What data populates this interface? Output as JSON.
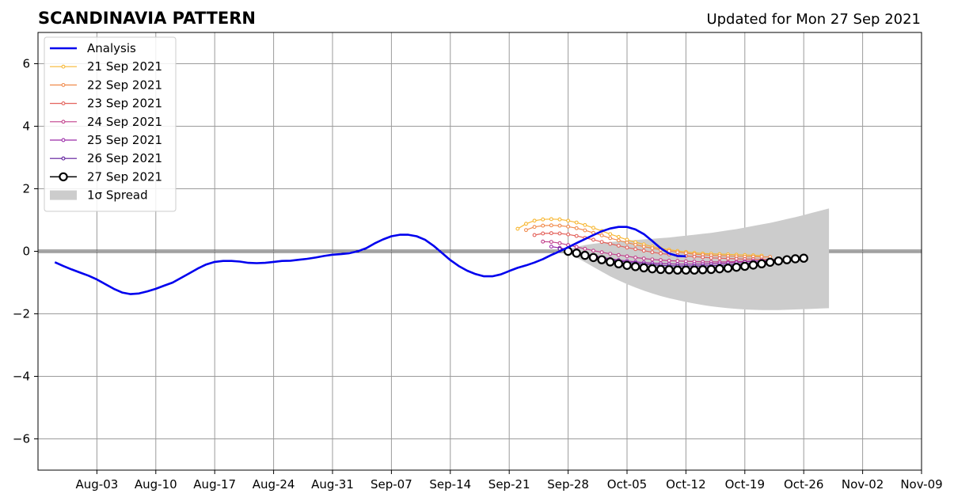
{
  "chart_data": {
    "type": "line",
    "title": "SCANDINAVIA PATTERN",
    "subtitle": "Updated for Mon 27 Sep 2021",
    "xlim": [
      "2021-07-27",
      "2021-11-09"
    ],
    "ylim": [
      -7,
      7
    ],
    "x_ticks": [
      {
        "date": "2021-08-03",
        "label": "Aug-03"
      },
      {
        "date": "2021-08-10",
        "label": "Aug-10"
      },
      {
        "date": "2021-08-17",
        "label": "Aug-17"
      },
      {
        "date": "2021-08-24",
        "label": "Aug-24"
      },
      {
        "date": "2021-08-31",
        "label": "Aug-31"
      },
      {
        "date": "2021-09-07",
        "label": "Sep-07"
      },
      {
        "date": "2021-09-14",
        "label": "Sep-14"
      },
      {
        "date": "2021-09-21",
        "label": "Sep-21"
      },
      {
        "date": "2021-09-28",
        "label": "Sep-28"
      },
      {
        "date": "2021-10-05",
        "label": "Oct-05"
      },
      {
        "date": "2021-10-12",
        "label": "Oct-12"
      },
      {
        "date": "2021-10-19",
        "label": "Oct-19"
      },
      {
        "date": "2021-10-26",
        "label": "Oct-26"
      },
      {
        "date": "2021-11-02",
        "label": "Nov-02"
      },
      {
        "date": "2021-11-09",
        "label": "Nov-09"
      }
    ],
    "y_ticks": [
      {
        "value": -6,
        "label": "−6"
      },
      {
        "value": -4,
        "label": "−4"
      },
      {
        "value": -2,
        "label": "−2"
      },
      {
        "value": 0,
        "label": "0"
      },
      {
        "value": 2,
        "label": "2"
      },
      {
        "value": 4,
        "label": "4"
      },
      {
        "value": 6,
        "label": "6"
      }
    ],
    "grid": true,
    "legend_position": "top-left",
    "analysis": {
      "name": "Analysis",
      "color": "#0000ee",
      "start": "2021-07-29",
      "values": [
        -0.35,
        -0.47,
        -0.58,
        -0.68,
        -0.78,
        -0.9,
        -1.05,
        -1.2,
        -1.32,
        -1.37,
        -1.35,
        -1.28,
        -1.2,
        -1.1,
        -1.0,
        -0.85,
        -0.7,
        -0.55,
        -0.42,
        -0.34,
        -0.31,
        -0.31,
        -0.33,
        -0.37,
        -0.38,
        -0.37,
        -0.34,
        -0.31,
        -0.3,
        -0.27,
        -0.24,
        -0.2,
        -0.15,
        -0.11,
        -0.09,
        -0.06,
        0.0,
        0.1,
        0.25,
        0.38,
        0.48,
        0.53,
        0.53,
        0.48,
        0.37,
        0.18,
        -0.05,
        -0.28,
        -0.47,
        -0.62,
        -0.73,
        -0.8,
        -0.8,
        -0.74,
        -0.63,
        -0.53,
        -0.45,
        -0.36,
        -0.25,
        -0.12,
        0.0,
        0.13,
        0.26,
        0.39,
        0.52,
        0.64,
        0.73,
        0.78,
        0.78,
        0.7,
        0.55,
        0.33,
        0.1,
        -0.07,
        -0.15,
        -0.16
      ]
    },
    "series": [
      {
        "name": "21 Sep 2021",
        "color": "#f7b733",
        "start": "2021-09-22",
        "values": [
          0.72,
          0.88,
          0.98,
          1.02,
          1.03,
          1.02,
          0.98,
          0.92,
          0.84,
          0.75,
          0.65,
          0.55,
          0.46,
          0.37,
          0.29,
          0.22,
          0.15,
          0.09,
          0.05,
          0.01,
          -0.02,
          -0.05,
          -0.07,
          -0.08,
          -0.09,
          -0.1,
          -0.11,
          -0.12,
          -0.13,
          -0.14
        ]
      },
      {
        "name": "22 Sep 2021",
        "color": "#f08a4b",
        "start": "2021-09-23",
        "values": [
          0.68,
          0.78,
          0.82,
          0.83,
          0.82,
          0.79,
          0.74,
          0.67,
          0.59,
          0.51,
          0.42,
          0.35,
          0.28,
          0.21,
          0.15,
          0.1,
          0.05,
          0.01,
          -0.03,
          -0.06,
          -0.09,
          -0.11,
          -0.13,
          -0.14,
          -0.15,
          -0.16,
          -0.17,
          -0.17,
          -0.18,
          -0.18
        ]
      },
      {
        "name": "23 Sep 2021",
        "color": "#e3615a",
        "start": "2021-09-24",
        "values": [
          0.52,
          0.57,
          0.58,
          0.57,
          0.54,
          0.49,
          0.43,
          0.37,
          0.3,
          0.24,
          0.18,
          0.12,
          0.07,
          0.02,
          -0.03,
          -0.07,
          -0.1,
          -0.13,
          -0.15,
          -0.17,
          -0.19,
          -0.21,
          -0.22,
          -0.23,
          -0.24,
          -0.25,
          -0.25,
          -0.26,
          -0.26,
          -0.26
        ]
      },
      {
        "name": "24 Sep 2021",
        "color": "#c13f8b",
        "start": "2021-09-25",
        "values": [
          0.31,
          0.3,
          0.26,
          0.2,
          0.14,
          0.08,
          0.02,
          -0.03,
          -0.08,
          -0.12,
          -0.16,
          -0.2,
          -0.23,
          -0.26,
          -0.28,
          -0.3,
          -0.31,
          -0.32,
          -0.33,
          -0.34,
          -0.34,
          -0.34,
          -0.34,
          -0.33,
          -0.32,
          -0.31,
          -0.3,
          -0.28,
          -0.27,
          -0.26
        ]
      },
      {
        "name": "25 Sep 2021",
        "color": "#9b2ba8",
        "start": "2021-09-26",
        "values": [
          0.15,
          0.11,
          0.05,
          -0.02,
          -0.08,
          -0.14,
          -0.19,
          -0.24,
          -0.28,
          -0.31,
          -0.34,
          -0.36,
          -0.38,
          -0.39,
          -0.4,
          -0.41,
          -0.41,
          -0.41,
          -0.41,
          -0.4,
          -0.39,
          -0.38,
          -0.36,
          -0.34,
          -0.32,
          -0.3,
          -0.28,
          -0.26,
          -0.24,
          -0.22
        ]
      },
      {
        "name": "26 Sep 2021",
        "color": "#5b189a",
        "start": "2021-09-27",
        "values": [
          0.08,
          0.04,
          -0.02,
          -0.09,
          -0.16,
          -0.22,
          -0.27,
          -0.31,
          -0.35,
          -0.38,
          -0.41,
          -0.43,
          -0.45,
          -0.46,
          -0.47,
          -0.47,
          -0.47,
          -0.47,
          -0.46,
          -0.45,
          -0.44,
          -0.42,
          -0.4,
          -0.38,
          -0.35,
          -0.33,
          -0.3,
          -0.28,
          -0.26,
          -0.24
        ]
      },
      {
        "name": "27 Sep 2021",
        "color": "#000000",
        "marker": "open-circle",
        "start": "2021-09-28",
        "values": [
          0.0,
          -0.06,
          -0.13,
          -0.2,
          -0.27,
          -0.34,
          -0.4,
          -0.45,
          -0.49,
          -0.53,
          -0.56,
          -0.58,
          -0.59,
          -0.6,
          -0.6,
          -0.6,
          -0.59,
          -0.58,
          -0.56,
          -0.54,
          -0.51,
          -0.48,
          -0.44,
          -0.4,
          -0.35,
          -0.31,
          -0.27,
          -0.24,
          -0.22
        ]
      }
    ],
    "spread": {
      "name": "1σ Spread",
      "color": "#cccccc",
      "start": "2021-09-28",
      "upper": [
        0.05,
        0.14,
        0.2,
        0.24,
        0.27,
        0.3,
        0.32,
        0.34,
        0.36,
        0.38,
        0.4,
        0.42,
        0.44,
        0.47,
        0.5,
        0.53,
        0.56,
        0.59,
        0.63,
        0.67,
        0.71,
        0.76,
        0.81,
        0.86,
        0.91,
        0.97,
        1.03,
        1.09,
        1.16,
        1.23,
        1.3,
        1.37
      ],
      "lower": [
        -0.05,
        -0.2,
        -0.35,
        -0.5,
        -0.65,
        -0.8,
        -0.93,
        -1.05,
        -1.16,
        -1.26,
        -1.35,
        -1.43,
        -1.5,
        -1.56,
        -1.62,
        -1.67,
        -1.72,
        -1.76,
        -1.79,
        -1.82,
        -1.84,
        -1.86,
        -1.87,
        -1.88,
        -1.88,
        -1.88,
        -1.87,
        -1.86,
        -1.85,
        -1.84,
        -1.83,
        -1.82
      ]
    }
  }
}
